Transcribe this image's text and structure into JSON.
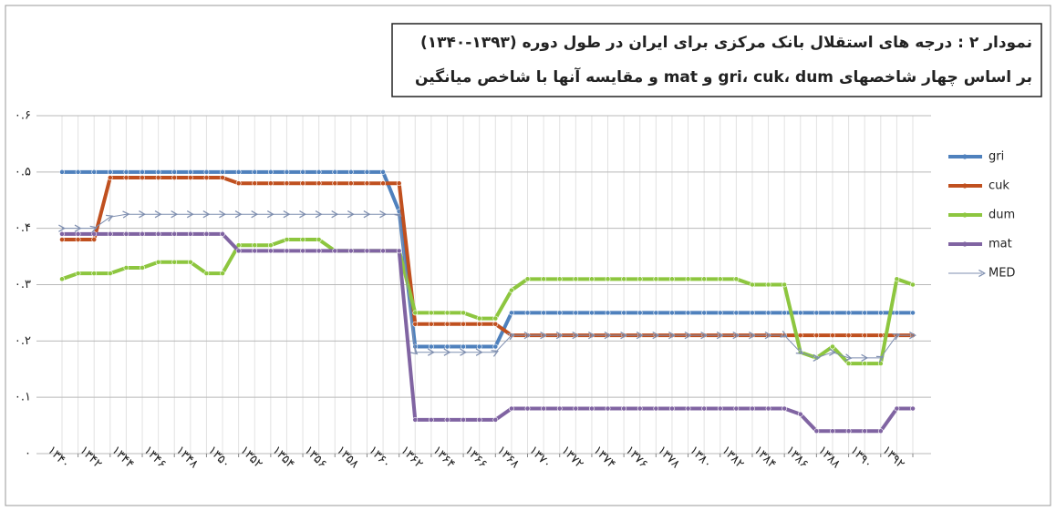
{
  "chart_data": {
    "type": "line",
    "title": "نمودار ۲ : درجه های استقلال بانک مرکزی برای ایران در طول دوره (۱۳۹۳-۱۳۴۰)",
    "subtitle": "بر اساس چهار شاخصهای gri، cuk، dum و mat و مقایسه آنها با شاخص میانگین",
    "categories": [
      "۱۳۴۰",
      null,
      "۱۳۴۲",
      null,
      "۱۳۴۴",
      null,
      "۱۳۴۶",
      null,
      "۱۳۴۸",
      null,
      "۱۳۵۰",
      null,
      "۱۳۵۲",
      null,
      "۱۳۵۴",
      null,
      "۱۳۵۶",
      null,
      "۱۳۵۸",
      null,
      "۱۳۶۰",
      null,
      "۱۳۶۲",
      null,
      "۱۳۶۴",
      null,
      "۱۳۶۶",
      null,
      "۱۳۶۸",
      null,
      "۱۳۷۰",
      null,
      "۱۳۷۲",
      null,
      "۱۳۷۴",
      null,
      "۱۳۷۶",
      null,
      "۱۳۷۸",
      null,
      "۱۳۸۰",
      null,
      "۱۳۸۲",
      null,
      "۱۳۸۴",
      null,
      "۱۳۸۶",
      null,
      "۱۳۸۸",
      null,
      "۱۳۹۰",
      null,
      "۱۳۹۲",
      null
    ],
    "series": [
      {
        "name": "gri",
        "color": "#4f81bd",
        "marker": "circle",
        "values": [
          0.5,
          0.5,
          0.5,
          0.5,
          0.5,
          0.5,
          0.5,
          0.5,
          0.5,
          0.5,
          0.5,
          0.5,
          0.5,
          0.5,
          0.5,
          0.5,
          0.5,
          0.5,
          0.5,
          0.5,
          0.5,
          0.43,
          0.19,
          0.19,
          0.19,
          0.19,
          0.19,
          0.19,
          0.25,
          0.25,
          0.25,
          0.25,
          0.25,
          0.25,
          0.25,
          0.25,
          0.25,
          0.25,
          0.25,
          0.25,
          0.25,
          0.25,
          0.25,
          0.25,
          0.25,
          0.25,
          0.25,
          0.25,
          0.25,
          0.25,
          0.25,
          0.25,
          0.25,
          0.25
        ]
      },
      {
        "name": "cuk",
        "color": "#c0501f",
        "marker": "circle",
        "values": [
          0.38,
          0.38,
          0.38,
          0.49,
          0.49,
          0.49,
          0.49,
          0.49,
          0.49,
          0.49,
          0.49,
          0.48,
          0.48,
          0.48,
          0.48,
          0.48,
          0.48,
          0.48,
          0.48,
          0.48,
          0.48,
          0.48,
          0.23,
          0.23,
          0.23,
          0.23,
          0.23,
          0.23,
          0.21,
          0.21,
          0.21,
          0.21,
          0.21,
          0.21,
          0.21,
          0.21,
          0.21,
          0.21,
          0.21,
          0.21,
          0.21,
          0.21,
          0.21,
          0.21,
          0.21,
          0.21,
          0.21,
          0.21,
          0.21,
          0.21,
          0.21,
          0.21,
          0.21,
          0.21
        ]
      },
      {
        "name": "dum",
        "color": "#8dc63f",
        "marker": "circle",
        "values": [
          0.31,
          0.32,
          0.32,
          0.32,
          0.33,
          0.33,
          0.34,
          0.34,
          0.34,
          0.32,
          0.32,
          0.37,
          0.37,
          0.37,
          0.38,
          0.38,
          0.38,
          0.36,
          0.36,
          0.36,
          0.36,
          0.36,
          0.25,
          0.25,
          0.25,
          0.25,
          0.24,
          0.24,
          0.29,
          0.31,
          0.31,
          0.31,
          0.31,
          0.31,
          0.31,
          0.31,
          0.31,
          0.31,
          0.31,
          0.31,
          0.31,
          0.31,
          0.31,
          0.3,
          0.3,
          0.3,
          0.18,
          0.17,
          0.19,
          0.16,
          0.16,
          0.16,
          0.31,
          0.3
        ]
      },
      {
        "name": "mat",
        "color": "#8064a2",
        "marker": "circle",
        "values": [
          0.39,
          0.39,
          0.39,
          0.39,
          0.39,
          0.39,
          0.39,
          0.39,
          0.39,
          0.39,
          0.39,
          0.36,
          0.36,
          0.36,
          0.36,
          0.36,
          0.36,
          0.36,
          0.36,
          0.36,
          0.36,
          0.36,
          0.06,
          0.06,
          0.06,
          0.06,
          0.06,
          0.06,
          0.08,
          0.08,
          0.08,
          0.08,
          0.08,
          0.08,
          0.08,
          0.08,
          0.08,
          0.08,
          0.08,
          0.08,
          0.08,
          0.08,
          0.08,
          0.08,
          0.08,
          0.08,
          0.07,
          0.04,
          0.04,
          0.04,
          0.04,
          0.04,
          0.08,
          0.08
        ]
      },
      {
        "name": "MED",
        "color": "#7f8fb0",
        "marker": "arrow",
        "values": [
          0.4,
          0.4,
          0.4,
          0.42,
          0.425,
          0.425,
          0.425,
          0.425,
          0.425,
          0.425,
          0.425,
          0.425,
          0.425,
          0.425,
          0.425,
          0.425,
          0.425,
          0.425,
          0.425,
          0.425,
          0.425,
          0.425,
          0.18,
          0.18,
          0.18,
          0.18,
          0.18,
          0.18,
          0.21,
          0.21,
          0.21,
          0.21,
          0.21,
          0.21,
          0.21,
          0.21,
          0.21,
          0.21,
          0.21,
          0.21,
          0.21,
          0.21,
          0.21,
          0.21,
          0.21,
          0.21,
          0.18,
          0.17,
          0.18,
          0.17,
          0.17,
          0.17,
          0.21,
          0.21
        ]
      }
    ],
    "ylim": [
      0,
      0.6
    ],
    "yticks": [
      {
        "value": 0,
        "label": "۰"
      },
      {
        "value": 0.1,
        "label": "۰.۱"
      },
      {
        "value": 0.2,
        "label": "۰.۲"
      },
      {
        "value": 0.3,
        "label": "۰.۳"
      },
      {
        "value": 0.4,
        "label": "۰.۴"
      },
      {
        "value": 0.5,
        "label": "۰.۵"
      },
      {
        "value": 0.6,
        "label": "۰.۶"
      }
    ],
    "grid": true,
    "legend": "right"
  }
}
